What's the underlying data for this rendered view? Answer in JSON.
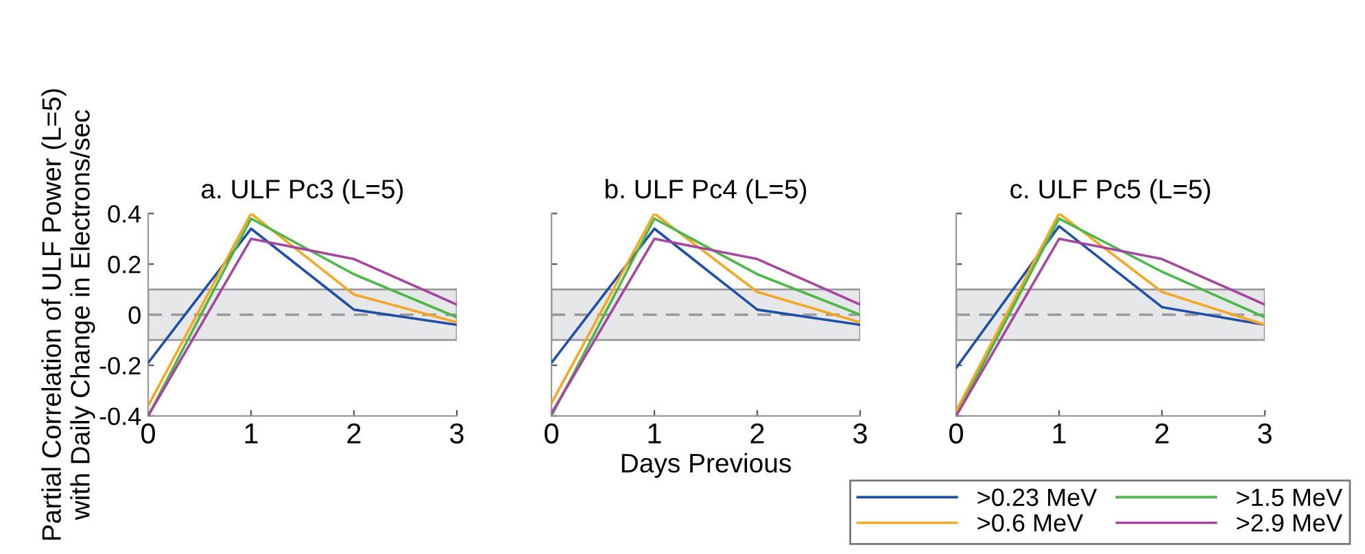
{
  "chart_data": [
    {
      "type": "line",
      "title": "a. ULF Pc3 (L=5)",
      "ylabel": "Partial Correlation of ULF Power (L=5)\nwith Daily Change in Electrons/sec",
      "x": [
        0,
        1,
        2,
        3
      ],
      "xlim": [
        0,
        3
      ],
      "xticks": [
        0,
        1,
        2,
        3
      ],
      "ylim": [
        -0.4,
        0.4
      ],
      "yticks": [
        -0.4,
        -0.2,
        0,
        0.2,
        0.4
      ],
      "series": [
        {
          "color": "#1f4fa8",
          "values": [
            -0.19,
            0.34,
            0.02,
            -0.04
          ]
        },
        {
          "color": "#f5a623",
          "values": [
            -0.36,
            0.4,
            0.08,
            -0.03
          ]
        },
        {
          "color": "#4cb848",
          "values": [
            -0.4,
            0.38,
            0.16,
            -0.01
          ]
        },
        {
          "color": "#a646a0",
          "values": [
            -0.4,
            0.3,
            0.22,
            0.04
          ]
        }
      ],
      "ref_lines": [
        {
          "axis": "y",
          "value": 0,
          "color": "#999999",
          "line_style": "dashed"
        }
      ],
      "bands": [
        {
          "axis": "y",
          "from": -0.1,
          "to": 0.1,
          "color": "#e6e7e8"
        }
      ],
      "legend": false
    },
    {
      "type": "line",
      "title": "b. ULF Pc4 (L=5)",
      "xlabel": "Days Previous",
      "x": [
        0,
        1,
        2,
        3
      ],
      "xlim": [
        0,
        3
      ],
      "xticks": [
        0,
        1,
        2,
        3
      ],
      "ylim": [
        -0.4,
        0.4
      ],
      "yticks": [
        -0.4,
        -0.2,
        0,
        0.2,
        0.4
      ],
      "tick_labels": "x",
      "series": [
        {
          "color": "#1f4fa8",
          "values": [
            -0.19,
            0.34,
            0.02,
            -0.04
          ]
        },
        {
          "color": "#f5a623",
          "values": [
            -0.35,
            0.4,
            0.09,
            -0.03
          ]
        },
        {
          "color": "#4cb848",
          "values": [
            -0.4,
            0.38,
            0.16,
            0.0
          ]
        },
        {
          "color": "#a646a0",
          "values": [
            -0.39,
            0.3,
            0.22,
            0.04
          ]
        }
      ],
      "ref_lines": [
        {
          "axis": "y",
          "value": 0,
          "color": "#999999",
          "line_style": "dashed"
        }
      ],
      "bands": [
        {
          "axis": "y",
          "from": -0.1,
          "to": 0.1,
          "color": "#e6e7e8"
        }
      ],
      "legend": false
    },
    {
      "type": "line",
      "title": "c. ULF Pc5 (L=5)",
      "x": [
        0,
        1,
        2,
        3
      ],
      "xlim": [
        0,
        3
      ],
      "xticks": [
        0,
        1,
        2,
        3
      ],
      "ylim": [
        -0.4,
        0.4
      ],
      "yticks": [
        -0.4,
        -0.2,
        0,
        0.2,
        0.4
      ],
      "tick_labels": "x",
      "series": [
        {
          "name": ">0.23 MeV",
          "color": "#1f4fa8",
          "values": [
            -0.21,
            0.35,
            0.03,
            -0.04
          ]
        },
        {
          "name": ">0.6 MeV",
          "color": "#f5a623",
          "values": [
            -0.38,
            0.4,
            0.09,
            -0.04
          ]
        },
        {
          "name": ">1.5 MeV",
          "color": "#4cb848",
          "values": [
            -0.4,
            0.38,
            0.17,
            -0.01
          ]
        },
        {
          "name": ">2.9 MeV",
          "color": "#a646a0",
          "values": [
            -0.4,
            0.3,
            0.22,
            0.04
          ]
        }
      ],
      "ref_lines": [
        {
          "axis": "y",
          "value": 0,
          "color": "#999999",
          "line_style": "dashed"
        }
      ],
      "bands": [
        {
          "axis": "y",
          "from": -0.1,
          "to": 0.1,
          "color": "#e6e7e8"
        }
      ],
      "legend": "bottom right"
    }
  ]
}
